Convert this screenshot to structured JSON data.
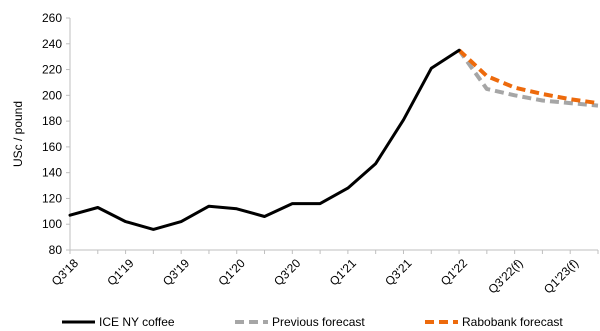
{
  "chart_data": {
    "type": "line",
    "ylabel": "USc / pound",
    "ylim": [
      80,
      260
    ],
    "yticks": [
      80,
      100,
      120,
      140,
      160,
      180,
      200,
      220,
      240,
      260
    ],
    "grid": false,
    "legend_position": "bottom",
    "categories": [
      "Q3'18",
      "Q4'18",
      "Q1'19",
      "Q2'19",
      "Q3'19",
      "Q4'19",
      "Q1'20",
      "Q2'20",
      "Q3'20",
      "Q4'20",
      "Q1'21",
      "Q2'21",
      "Q3'21",
      "Q4'21",
      "Q1'22",
      "Q2'22",
      "Q3'22(f)",
      "Q4'22",
      "Q1'23(f)",
      "Q2'23"
    ],
    "x_tick_labels": [
      "Q3'18",
      "Q1'19",
      "Q3'19",
      "Q1'20",
      "Q3'20",
      "Q1'21",
      "Q3'21",
      "Q1'22",
      "Q3'22(f)",
      "Q1'23(f)"
    ],
    "series": [
      {
        "name": "ICE NY coffee",
        "color": "#000000",
        "dash": "solid",
        "values": [
          107,
          113,
          102,
          96,
          102,
          114,
          112,
          106,
          116,
          116,
          128,
          147,
          181,
          221,
          235,
          null,
          null,
          null,
          null,
          null
        ]
      },
      {
        "name": "Previous forecast",
        "color": "#a6a6a6",
        "dash": "dashed",
        "values": [
          null,
          null,
          null,
          null,
          null,
          null,
          null,
          null,
          null,
          null,
          null,
          null,
          null,
          null,
          235,
          205,
          200,
          196,
          194,
          192
        ]
      },
      {
        "name": "Rabobank forecast",
        "color": "#ed6a0c",
        "dash": "dashed",
        "values": [
          null,
          null,
          null,
          null,
          null,
          null,
          null,
          null,
          null,
          null,
          null,
          null,
          null,
          null,
          235,
          215,
          206,
          201,
          197,
          194
        ]
      }
    ]
  }
}
